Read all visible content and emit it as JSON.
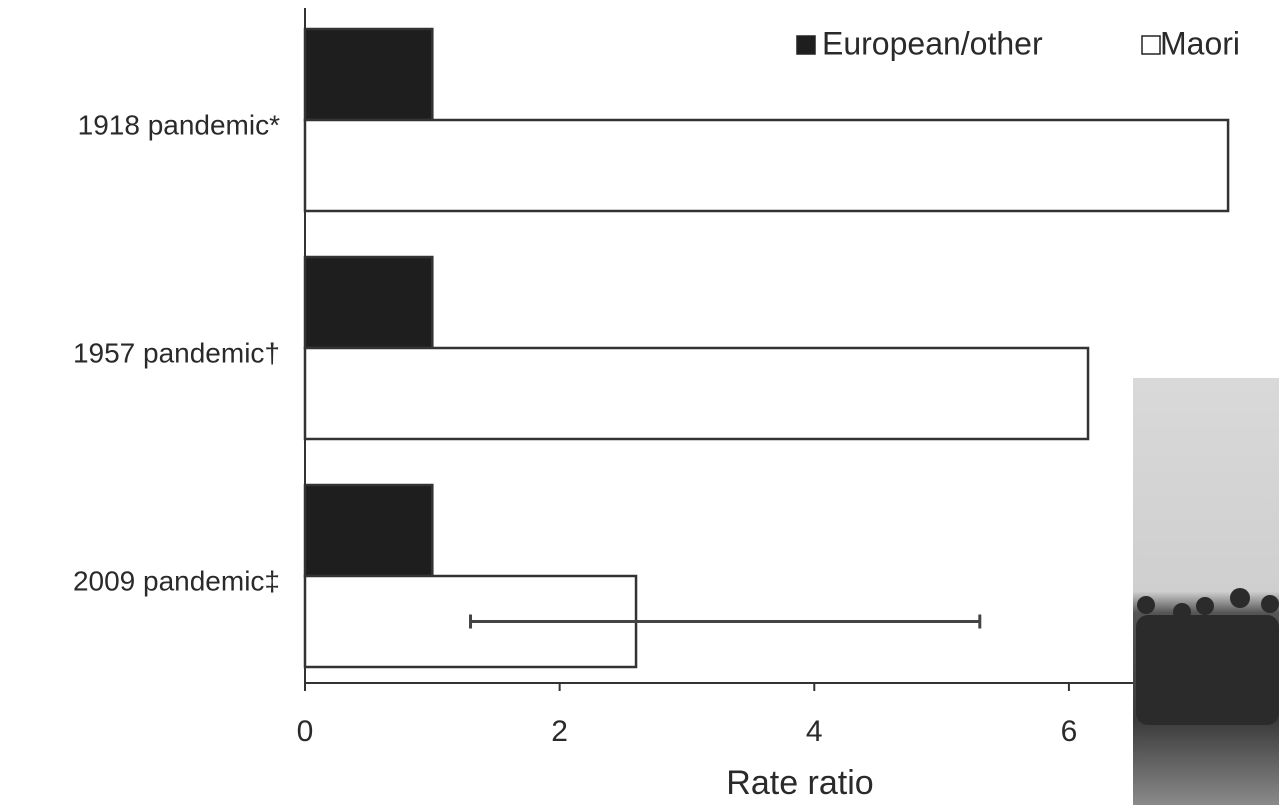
{
  "chart_data": {
    "type": "hbar",
    "xlabel": "Rate ratio",
    "categories": [
      "1918 pandemic*",
      "1957 pandemic†",
      "2009 pandemic‡"
    ],
    "series": [
      {
        "name": "European/other",
        "color": "#1e1e1e",
        "values": [
          1,
          1,
          1
        ]
      },
      {
        "name": "Maori",
        "color": "#ffffff",
        "values": [
          7.25,
          6.15,
          2.6
        ],
        "ci_lower": [
          null,
          null,
          1.3
        ],
        "ci_upper": [
          null,
          null,
          5.3
        ]
      }
    ],
    "xlim": [
      0,
      7.65
    ],
    "xticks": [
      0,
      2,
      4,
      6
    ],
    "grid": false,
    "legend": "top-right"
  }
}
